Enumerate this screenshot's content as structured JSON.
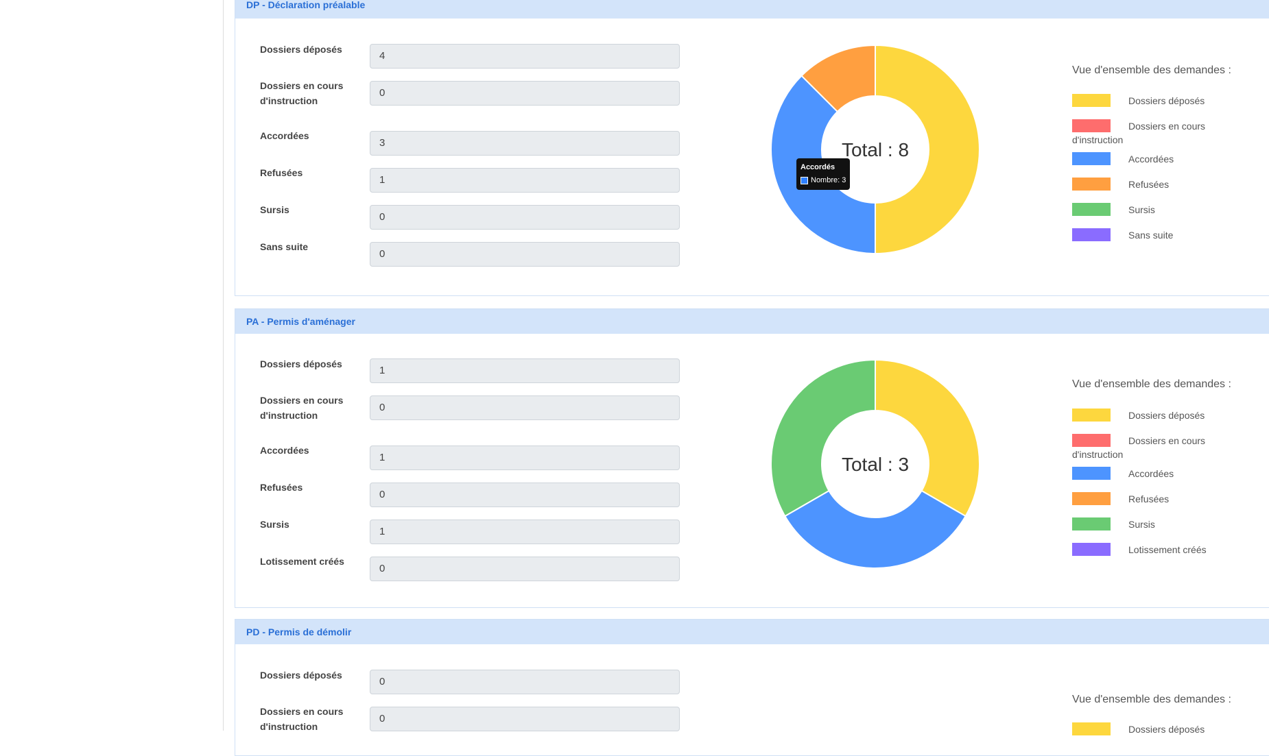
{
  "legend_title": "Vue d'ensemble des demandes :",
  "colors": {
    "deposes": "#fdd73e",
    "en_cours": "#fe6d6d",
    "accordees": "#4d94ff",
    "refusees": "#ff9f40",
    "sursis": "#6acb73",
    "sans_suite": "#8a6cff",
    "header_bg": "#d3e4fa",
    "header_text": "#2a6fd6"
  },
  "panels": [
    {
      "title": "DP - Déclaration préalable",
      "fields": [
        {
          "label": "Dossiers déposés",
          "value": "4"
        },
        {
          "label": "Dossiers en cours d'instruction",
          "value": "0"
        },
        {
          "label": "Accordées",
          "value": "3"
        },
        {
          "label": "Refusées",
          "value": "1"
        },
        {
          "label": "Sursis",
          "value": "0"
        },
        {
          "label": "Sans suite",
          "value": "0"
        }
      ],
      "total_label": "Total : 8",
      "legend": [
        "Dossiers déposés",
        "Dossiers en cours d'instruction",
        "Accordées",
        "Refusées",
        "Sursis",
        "Sans suite"
      ],
      "tooltip": {
        "title": "Accordés",
        "text": "Nombre: 3"
      }
    },
    {
      "title": "PA - Permis d'aménager",
      "fields": [
        {
          "label": "Dossiers déposés",
          "value": "1"
        },
        {
          "label": "Dossiers en cours d'instruction",
          "value": "0"
        },
        {
          "label": "Accordées",
          "value": "1"
        },
        {
          "label": "Refusées",
          "value": "0"
        },
        {
          "label": "Sursis",
          "value": "1"
        },
        {
          "label": "Lotissement créés",
          "value": "0"
        }
      ],
      "total_label": "Total : 3",
      "legend": [
        "Dossiers déposés",
        "Dossiers en cours d'instruction",
        "Accordées",
        "Refusées",
        "Sursis",
        "Lotissement créés"
      ]
    },
    {
      "title": "PD - Permis de démolir",
      "fields": [
        {
          "label": "Dossiers déposés",
          "value": "0"
        },
        {
          "label": "Dossiers en cours d'instruction",
          "value": "0"
        }
      ],
      "legend": [
        "Dossiers déposés"
      ]
    }
  ],
  "chart_data": [
    {
      "type": "pie",
      "variant": "doughnut",
      "categories": [
        "Dossiers déposés",
        "Dossiers en cours d'instruction",
        "Accordés",
        "Refusées",
        "Sursis",
        "Sans suite"
      ],
      "values": [
        4,
        0,
        3,
        1,
        0,
        0
      ],
      "center_label": "Total : 8"
    },
    {
      "type": "pie",
      "variant": "doughnut",
      "categories": [
        "Dossiers déposés",
        "Dossiers en cours d'instruction",
        "Accordées",
        "Refusées",
        "Sursis",
        "Lotissement créés"
      ],
      "values": [
        1,
        0,
        1,
        0,
        1,
        0
      ],
      "center_label": "Total : 3"
    }
  ]
}
